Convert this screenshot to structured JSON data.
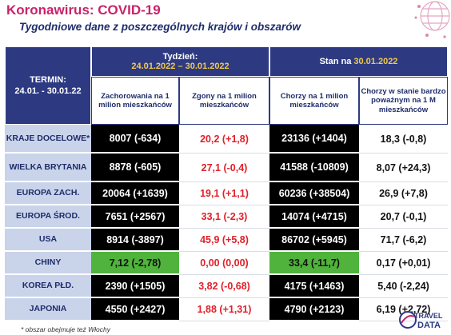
{
  "title": "Koronawirus: COVID-19",
  "subtitle": "Tygodniowe dane z poszczególnych krajów i obszarów",
  "header": {
    "termin_label": "TERMIN:",
    "termin_dates": "24.01. - 30.01.22",
    "week_label": "Tydzień:",
    "week_dates": "24.01.2022 – 30.01.2022",
    "status_label": "Stan na ",
    "status_date": "30.01.2022",
    "cols": [
      "Zachorowania na 1 milion mieszkańców",
      "Zgony na 1 milion mieszkańców",
      "Chorzy na 1 milion mieszkańców",
      "Chorzy w stanie bardzo poważnym na 1 M mieszkańców"
    ]
  },
  "rows": [
    {
      "label": "KRAJE DOCELOWE*",
      "v": [
        "8007 (-634)",
        "20,2 (+1,8)",
        "23136 (+1404)",
        "18,3 (-0,8)"
      ]
    },
    {
      "label": "WIELKA BRYTANIA",
      "v": [
        "8878 (-605)",
        "27,1 (-0,4)",
        "41588 (-10809)",
        "8,07 (+24,3)"
      ]
    },
    {
      "label": "EUROPA ZACH.",
      "v": [
        "20064 (+1639)",
        "19,1 (+1,1)",
        "60236 (+38504)",
        "26,9 (+7,8)"
      ]
    },
    {
      "label": "EUROPA ŚROD.",
      "v": [
        "7651 (+2567)",
        "33,1 (-2,3)",
        "14074 (+4715)",
        "20,7 (-0,1)"
      ]
    },
    {
      "label": "USA",
      "v": [
        "8914  (-3897)",
        "45,9 (+5,8)",
        "86702 (+5945)",
        "71,7 (-6,2)"
      ]
    },
    {
      "label": "CHINY",
      "v": [
        "7,12 (-2,78)",
        "0,00 (0,00)",
        "33,4 (-11,7)",
        "0,17 (+0,01)"
      ]
    },
    {
      "label": "KOREA PŁD.",
      "v": [
        "2390 (+1505)",
        "3,82 (-0,68)",
        "4175 (+1463)",
        "5,40 (-2,24)"
      ]
    },
    {
      "label": "JAPONIA",
      "v": [
        "4550 (+2427)",
        "1,88 (+1,31)",
        "4790 (+2123)",
        "6,19 (+2,72)"
      ]
    }
  ],
  "footnote": "* obszar obejmuje też Włochy",
  "logo": {
    "line1": "TRAVEL",
    "line2": "DATA"
  },
  "colors": {
    "navy": "#2d3a82",
    "magenta": "#c8236a",
    "gold": "#f2c94c",
    "red": "#e0202a",
    "green": "#4fb33c",
    "label_bg": "#c9d3ea"
  }
}
